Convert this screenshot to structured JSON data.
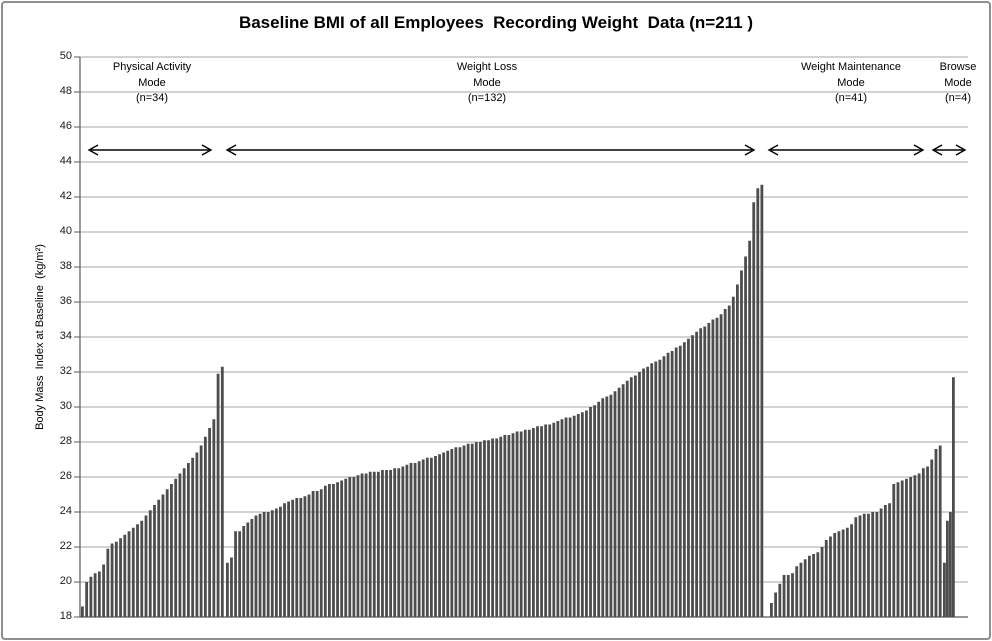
{
  "title": "Baseline BMI of all Employees  Recording Weight  Data (n=211 )",
  "y_axis_label": "Body Mass  Index at Baseline  (kg/m²)",
  "colors": {
    "bar": "#4d4d4d",
    "gridline": "#a6a6a6",
    "axis": "#595959",
    "arrow": "#000000",
    "border": "#8f8f8f"
  },
  "chart_data": {
    "type": "bar",
    "title": "Baseline BMI of all Employees  Recording Weight  Data (n=211 )",
    "xlabel": "",
    "ylabel": "Body Mass  Index at Baseline  (kg/m²)",
    "ylim": [
      18,
      50
    ],
    "yticks": [
      18,
      20,
      22,
      24,
      26,
      28,
      30,
      32,
      34,
      36,
      38,
      40,
      42,
      44,
      46,
      48,
      50
    ],
    "grid": true,
    "legend": "none",
    "total_n": 211,
    "bars_sorted_ascending_within_group": true,
    "groups": [
      {
        "label": "Physical Activity",
        "mode_label": "Mode",
        "n_label": "(n=34)",
        "n": 34,
        "values": [
          18.6,
          20.0,
          20.3,
          20.5,
          20.6,
          21.0,
          21.9,
          22.2,
          22.3,
          22.5,
          22.7,
          22.9,
          23.1,
          23.3,
          23.5,
          23.8,
          24.1,
          24.4,
          24.7,
          25.0,
          25.3,
          25.6,
          25.9,
          26.2,
          26.5,
          26.8,
          27.1,
          27.4,
          27.8,
          28.3,
          28.8,
          29.3,
          31.9,
          32.3
        ]
      },
      {
        "label": "Weight Loss",
        "mode_label": "Mode",
        "n_label": "(n=132)",
        "n": 132,
        "values": [
          21.1,
          21.4,
          22.9,
          22.9,
          23.2,
          23.4,
          23.6,
          23.8,
          23.9,
          24.0,
          24.0,
          24.1,
          24.2,
          24.3,
          24.5,
          24.6,
          24.7,
          24.8,
          24.8,
          24.9,
          25.0,
          25.2,
          25.2,
          25.3,
          25.5,
          25.6,
          25.6,
          25.7,
          25.8,
          25.9,
          26.0,
          26.0,
          26.1,
          26.2,
          26.2,
          26.3,
          26.3,
          26.3,
          26.4,
          26.4,
          26.4,
          26.5,
          26.5,
          26.6,
          26.7,
          26.8,
          26.8,
          26.9,
          27.0,
          27.1,
          27.1,
          27.2,
          27.3,
          27.4,
          27.5,
          27.6,
          27.7,
          27.7,
          27.8,
          27.9,
          27.9,
          28.0,
          28.0,
          28.1,
          28.1,
          28.2,
          28.2,
          28.3,
          28.4,
          28.4,
          28.5,
          28.6,
          28.6,
          28.7,
          28.7,
          28.8,
          28.9,
          28.9,
          29.0,
          29.0,
          29.1,
          29.2,
          29.3,
          29.4,
          29.4,
          29.5,
          29.6,
          29.7,
          29.8,
          30.0,
          30.1,
          30.3,
          30.5,
          30.6,
          30.7,
          30.9,
          31.1,
          31.3,
          31.5,
          31.7,
          31.8,
          32.0,
          32.2,
          32.3,
          32.5,
          32.6,
          32.7,
          32.9,
          33.1,
          33.2,
          33.4,
          33.5,
          33.7,
          33.9,
          34.1,
          34.3,
          34.5,
          34.6,
          34.8,
          35.0,
          35.1,
          35.3,
          35.6,
          35.8,
          36.3,
          37.0,
          37.8,
          38.6,
          39.5,
          41.7,
          42.5,
          42.7
        ]
      },
      {
        "label": "Weight Maintenance",
        "mode_label": "Mode",
        "n_label": "(n=41)",
        "n": 41,
        "values": [
          18.8,
          19.4,
          19.9,
          20.4,
          20.4,
          20.5,
          20.9,
          21.1,
          21.3,
          21.5,
          21.6,
          21.7,
          22.0,
          22.4,
          22.6,
          22.8,
          22.9,
          23.0,
          23.1,
          23.3,
          23.7,
          23.8,
          23.9,
          23.9,
          24.0,
          24.0,
          24.2,
          24.4,
          24.5,
          25.6,
          25.7,
          25.8,
          25.9,
          26.0,
          26.1,
          26.2,
          26.5,
          26.6,
          27.0,
          27.6,
          27.8
        ]
      },
      {
        "label": "Browse",
        "mode_label": "Mode",
        "n_label": "(n=4)",
        "n": 4,
        "values": [
          21.1,
          23.5,
          24.0,
          31.7
        ]
      }
    ]
  }
}
